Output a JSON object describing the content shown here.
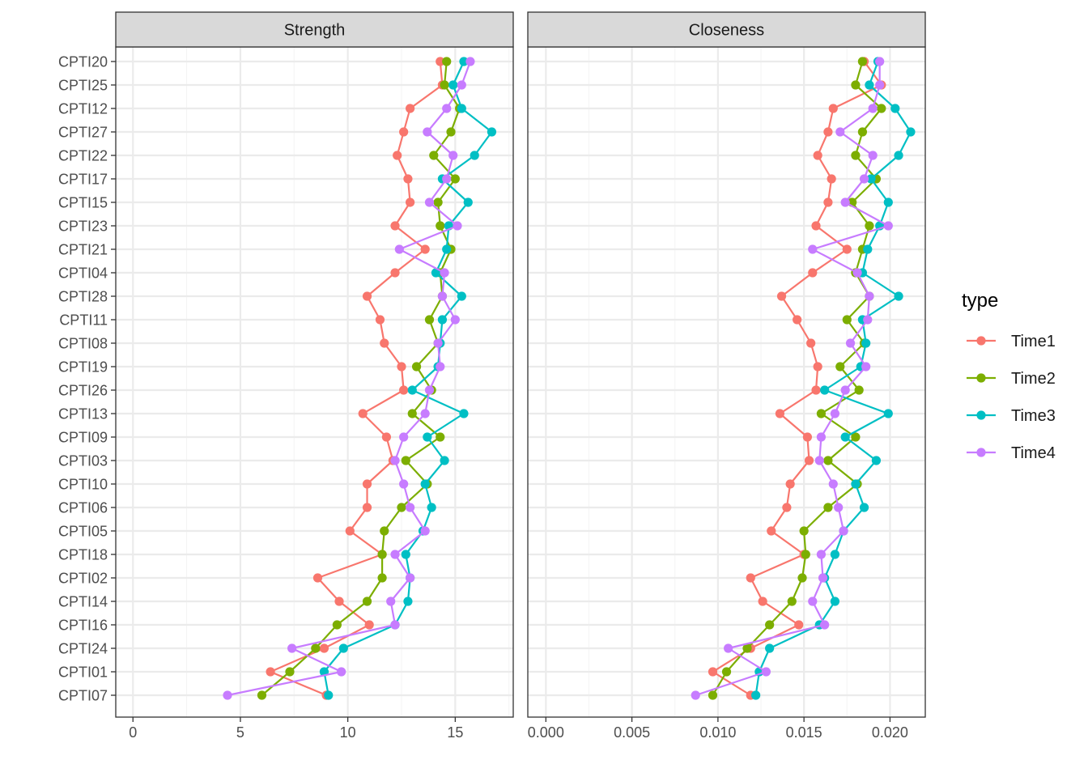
{
  "chart_data": [
    {
      "type": "line",
      "panel": "Strength",
      "y_categories": [
        "CPTI20",
        "CPTI25",
        "CPTI12",
        "CPTI27",
        "CPTI22",
        "CPTI17",
        "CPTI15",
        "CPTI23",
        "CPTI21",
        "CPTI04",
        "CPTI28",
        "CPTI11",
        "CPTI08",
        "CPTI19",
        "CPTI26",
        "CPTI13",
        "CPTI09",
        "CPTI03",
        "CPTI10",
        "CPTI06",
        "CPTI05",
        "CPTI18",
        "CPTI02",
        "CPTI14",
        "CPTI16",
        "CPTI24",
        "CPTI01",
        "CPTI07"
      ],
      "xlim": [
        -0.8,
        17.7
      ],
      "xticks": [
        0,
        5,
        10,
        15
      ],
      "xtick_labels": [
        "0",
        "5",
        "10",
        "15"
      ],
      "series": [
        {
          "name": "Time1",
          "color": "#F8766D",
          "values": [
            14.3,
            14.4,
            12.9,
            12.6,
            12.3,
            12.8,
            12.9,
            12.2,
            13.6,
            12.2,
            10.9,
            11.5,
            11.7,
            12.5,
            12.6,
            10.7,
            11.8,
            12.1,
            10.9,
            10.9,
            10.1,
            11.6,
            8.6,
            9.6,
            11.0,
            8.9,
            6.4,
            9.0
          ]
        },
        {
          "name": "Time2",
          "color": "#7CAE00",
          "values": [
            14.6,
            14.5,
            15.2,
            14.8,
            14.0,
            15.0,
            14.2,
            14.3,
            14.8,
            14.3,
            14.4,
            13.8,
            14.2,
            13.2,
            13.9,
            13.0,
            14.3,
            12.7,
            13.7,
            12.5,
            11.7,
            11.6,
            11.6,
            10.9,
            9.5,
            8.5,
            7.3,
            6.0
          ]
        },
        {
          "name": "Time3",
          "color": "#00BFC4",
          "values": [
            15.4,
            14.9,
            15.3,
            16.7,
            15.9,
            14.4,
            15.6,
            14.7,
            14.6,
            14.1,
            15.3,
            14.4,
            14.3,
            14.2,
            13.0,
            15.4,
            13.7,
            14.5,
            13.6,
            13.9,
            13.5,
            12.7,
            12.9,
            12.8,
            12.2,
            9.8,
            8.9,
            9.1
          ]
        },
        {
          "name": "Time4",
          "color": "#C77CFF",
          "values": [
            15.7,
            15.3,
            14.6,
            13.7,
            14.9,
            14.6,
            13.8,
            15.1,
            12.4,
            14.5,
            14.4,
            15.0,
            14.2,
            14.3,
            13.8,
            13.6,
            12.6,
            12.2,
            12.6,
            12.9,
            13.6,
            12.2,
            12.9,
            12.0,
            12.2,
            7.4,
            9.7,
            4.4
          ]
        }
      ]
    },
    {
      "type": "line",
      "panel": "Closeness",
      "y_categories": [
        "CPTI20",
        "CPTI25",
        "CPTI12",
        "CPTI27",
        "CPTI22",
        "CPTI17",
        "CPTI15",
        "CPTI23",
        "CPTI21",
        "CPTI04",
        "CPTI28",
        "CPTI11",
        "CPTI08",
        "CPTI19",
        "CPTI26",
        "CPTI13",
        "CPTI09",
        "CPTI03",
        "CPTI10",
        "CPTI06",
        "CPTI05",
        "CPTI18",
        "CPTI02",
        "CPTI14",
        "CPTI16",
        "CPTI24",
        "CPTI01",
        "CPTI07"
      ],
      "xlim": [
        -0.00105,
        0.02205
      ],
      "xticks": [
        0,
        0.005,
        0.01,
        0.015,
        0.02
      ],
      "xtick_labels": [
        "0.000",
        "0.005",
        "0.010",
        "0.015",
        "0.020"
      ],
      "series": [
        {
          "name": "Time1",
          "color": "#F8766D",
          "values": [
            0.0185,
            0.0195,
            0.0167,
            0.0164,
            0.0158,
            0.0166,
            0.0164,
            0.0157,
            0.0175,
            0.0155,
            0.0137,
            0.0146,
            0.0154,
            0.0158,
            0.0157,
            0.0136,
            0.0152,
            0.0153,
            0.0142,
            0.014,
            0.0131,
            0.015,
            0.0119,
            0.0126,
            0.0147,
            0.0119,
            0.0097,
            0.0119
          ]
        },
        {
          "name": "Time2",
          "color": "#7CAE00",
          "values": [
            0.0184,
            0.018,
            0.0195,
            0.0184,
            0.018,
            0.0192,
            0.0178,
            0.0188,
            0.0184,
            0.018,
            0.0188,
            0.0175,
            0.0185,
            0.0171,
            0.0182,
            0.016,
            0.018,
            0.0164,
            0.0181,
            0.0164,
            0.015,
            0.0151,
            0.0149,
            0.0143,
            0.013,
            0.0117,
            0.0105,
            0.0097
          ]
        },
        {
          "name": "Time3",
          "color": "#00BFC4",
          "values": [
            0.0193,
            0.0188,
            0.0203,
            0.0212,
            0.0205,
            0.0189,
            0.0199,
            0.0194,
            0.0187,
            0.0184,
            0.0205,
            0.0184,
            0.0186,
            0.0183,
            0.0162,
            0.0199,
            0.0174,
            0.0192,
            0.018,
            0.0185,
            0.0173,
            0.0168,
            0.0162,
            0.0168,
            0.0159,
            0.013,
            0.0124,
            0.0122
          ]
        },
        {
          "name": "Time4",
          "color": "#C77CFF",
          "values": [
            0.0194,
            0.0194,
            0.019,
            0.0171,
            0.019,
            0.0185,
            0.0174,
            0.0199,
            0.0155,
            0.0181,
            0.0188,
            0.0187,
            0.0177,
            0.0186,
            0.0174,
            0.0168,
            0.016,
            0.0159,
            0.0167,
            0.017,
            0.0173,
            0.016,
            0.0161,
            0.0155,
            0.0162,
            0.0106,
            0.0128,
            0.0087
          ]
        }
      ]
    }
  ],
  "legend": {
    "title": "type",
    "entries": [
      "Time1",
      "Time2",
      "Time3",
      "Time4"
    ],
    "colors": [
      "#F8766D",
      "#7CAE00",
      "#00BFC4",
      "#C77CFF"
    ],
    "placement": "right"
  },
  "grid": true,
  "style": {
    "strip_fill": "#D9D9D9",
    "panel_border": "#333333",
    "grid_major": "#EBEBEB",
    "grid_minor": "#F4F4F4",
    "axis_text": "#4D4D4D"
  }
}
